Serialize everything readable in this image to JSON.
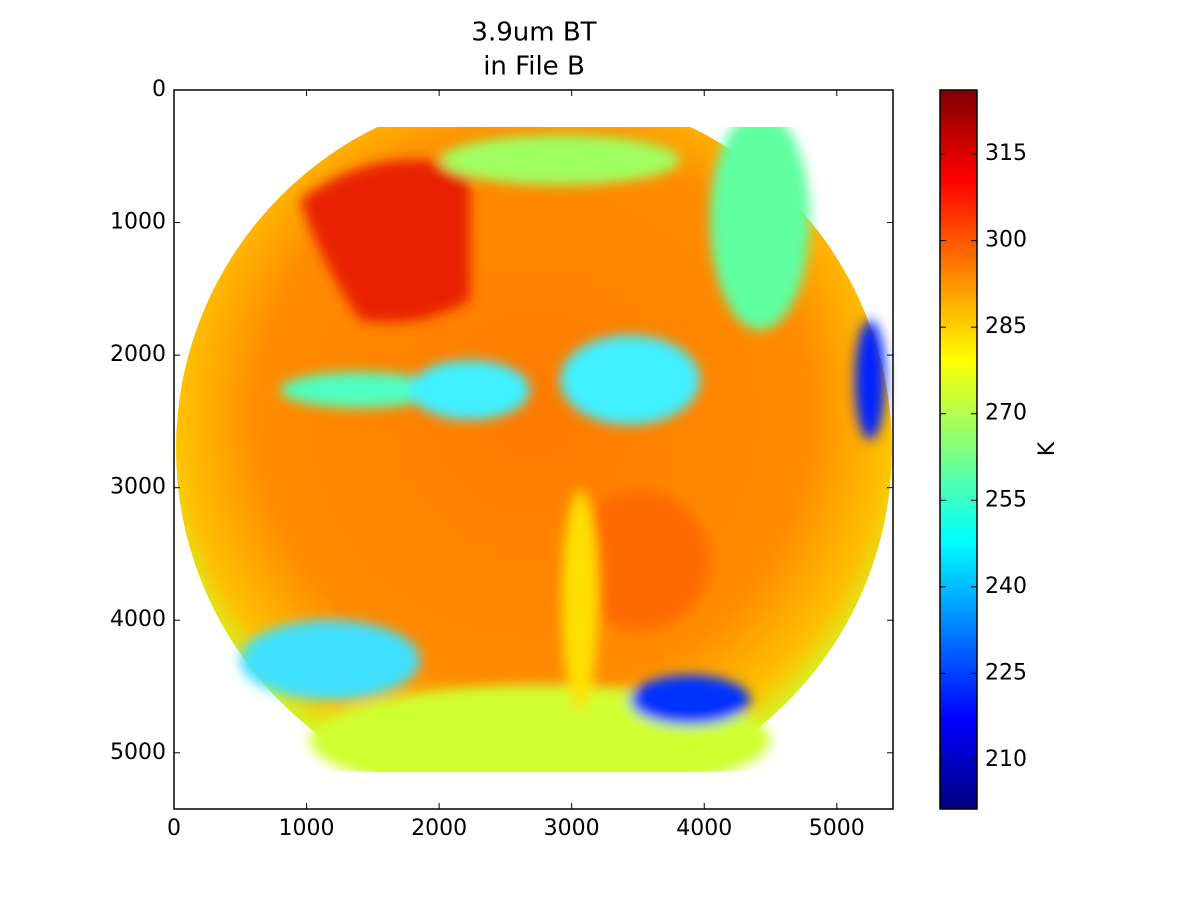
{
  "chart_data": {
    "type": "image",
    "title": "3.9um BT",
    "subtitle": "in File B",
    "xlim": [
      0,
      5424
    ],
    "xticks": [
      0,
      1000,
      2000,
      3000,
      4000,
      5000
    ],
    "ylim": [
      5424,
      0
    ],
    "yticks": [
      0,
      1000,
      2000,
      3000,
      4000,
      5000
    ],
    "colormap": "jet",
    "colorbar_label": "K",
    "clim": [
      201.5,
      326.1
    ],
    "colorbar_ticks": [
      210,
      225,
      240,
      255,
      270,
      285,
      300,
      315
    ]
  }
}
